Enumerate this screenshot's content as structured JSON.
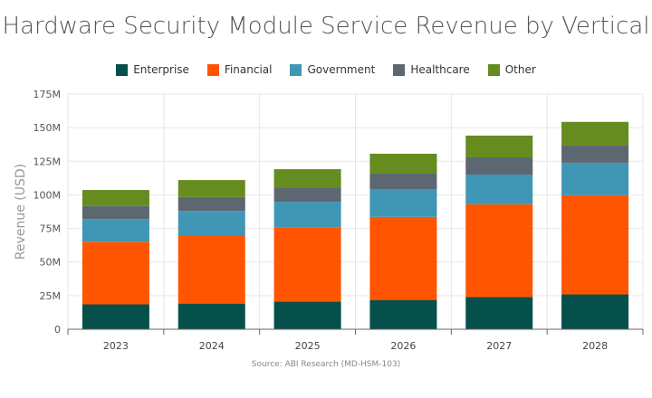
{
  "chart_data": {
    "type": "bar",
    "stacked": true,
    "title": "Hardware Security Module Service Revenue by Vertical",
    "ylabel": "Revenue (USD)",
    "xlabel": "",
    "ylim": [
      0,
      175
    ],
    "yticks": [
      "0",
      "25M",
      "50M",
      "75M",
      "100M",
      "125M",
      "150M",
      "175M"
    ],
    "grid": true,
    "legend": "top",
    "source": "Source: ABI Research (MD-HSM-103)",
    "categories": [
      "2023",
      "2024",
      "2025",
      "2026",
      "2027",
      "2028"
    ],
    "series": [
      {
        "name": "Enterprise",
        "color": "#05504b",
        "values": [
          18.5,
          19.1,
          20.5,
          21.8,
          23.9,
          25.9
        ]
      },
      {
        "name": "Financial",
        "color": "#ff5500",
        "values": [
          46.6,
          50.9,
          55.0,
          61.8,
          69.1,
          73.9
        ]
      },
      {
        "name": "Government",
        "color": "#4096b5",
        "values": [
          16.9,
          18.1,
          19.3,
          20.7,
          22.1,
          24.1
        ]
      },
      {
        "name": "Healthcare",
        "color": "#5d6771",
        "values": [
          9.7,
          10.3,
          10.8,
          11.5,
          12.8,
          12.8
        ]
      },
      {
        "name": "Other",
        "color": "#668b1e",
        "values": [
          11.9,
          12.6,
          13.5,
          14.8,
          16.2,
          17.6
        ]
      }
    ]
  }
}
